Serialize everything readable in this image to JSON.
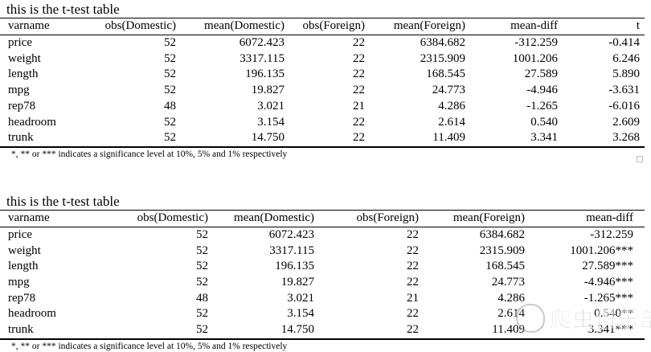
{
  "tables": [
    {
      "title": "this is the t-test table",
      "columns": [
        "varname",
        "obs(Domestic)",
        "mean(Domestic)",
        "obs(Foreign)",
        "mean(Foreign)",
        "mean-diff",
        "t"
      ],
      "rows": [
        [
          "price",
          "52",
          "6072.423",
          "22",
          "6384.682",
          "-312.259",
          "-0.414"
        ],
        [
          "weight",
          "52",
          "3317.115",
          "22",
          "2315.909",
          "1001.206",
          "6.246"
        ],
        [
          "length",
          "52",
          "196.135",
          "22",
          "168.545",
          "27.589",
          "5.890"
        ],
        [
          "mpg",
          "52",
          "19.827",
          "22",
          "24.773",
          "-4.946",
          "-3.631"
        ],
        [
          "rep78",
          "48",
          "3.021",
          "21",
          "4.286",
          "-1.265",
          "-6.016"
        ],
        [
          "headroom",
          "52",
          "3.154",
          "22",
          "2.614",
          "0.540",
          "2.609"
        ],
        [
          "trunk",
          "52",
          "14.750",
          "22",
          "11.409",
          "3.341",
          "3.268"
        ]
      ],
      "footnote": "*, ** or *** indicates a significance level at 10%, 5% and 1% respectively"
    },
    {
      "title": "this is the t-test table",
      "columns": [
        "varname",
        "obs(Domestic)",
        "mean(Domestic)",
        "obs(Foreign)",
        "mean(Foreign)",
        "mean-diff"
      ],
      "rows": [
        [
          "price",
          "52",
          "6072.423",
          "22",
          "6384.682",
          "-312.259"
        ],
        [
          "weight",
          "52",
          "3317.115",
          "22",
          "2315.909",
          "1001.206***"
        ],
        [
          "length",
          "52",
          "196.135",
          "22",
          "168.545",
          "27.589***"
        ],
        [
          "mpg",
          "52",
          "19.827",
          "22",
          "24.773",
          "-4.946***"
        ],
        [
          "rep78",
          "48",
          "3.021",
          "21",
          "4.286",
          "-1.265***"
        ],
        [
          "headroom",
          "52",
          "3.154",
          "22",
          "2.614",
          "0.540**"
        ],
        [
          "trunk",
          "52",
          "14.750",
          "22",
          "11.409",
          "3.341***"
        ]
      ],
      "footnote": "*, ** or *** indicates a significance level at 10%, 5% and 1% respectively"
    }
  ],
  "watermark": {
    "text": "爬虫俱乐部",
    "color": "#a9a9a9"
  },
  "colors": {
    "text": "#000000",
    "background": "#ffffff",
    "rule": "#000000"
  }
}
